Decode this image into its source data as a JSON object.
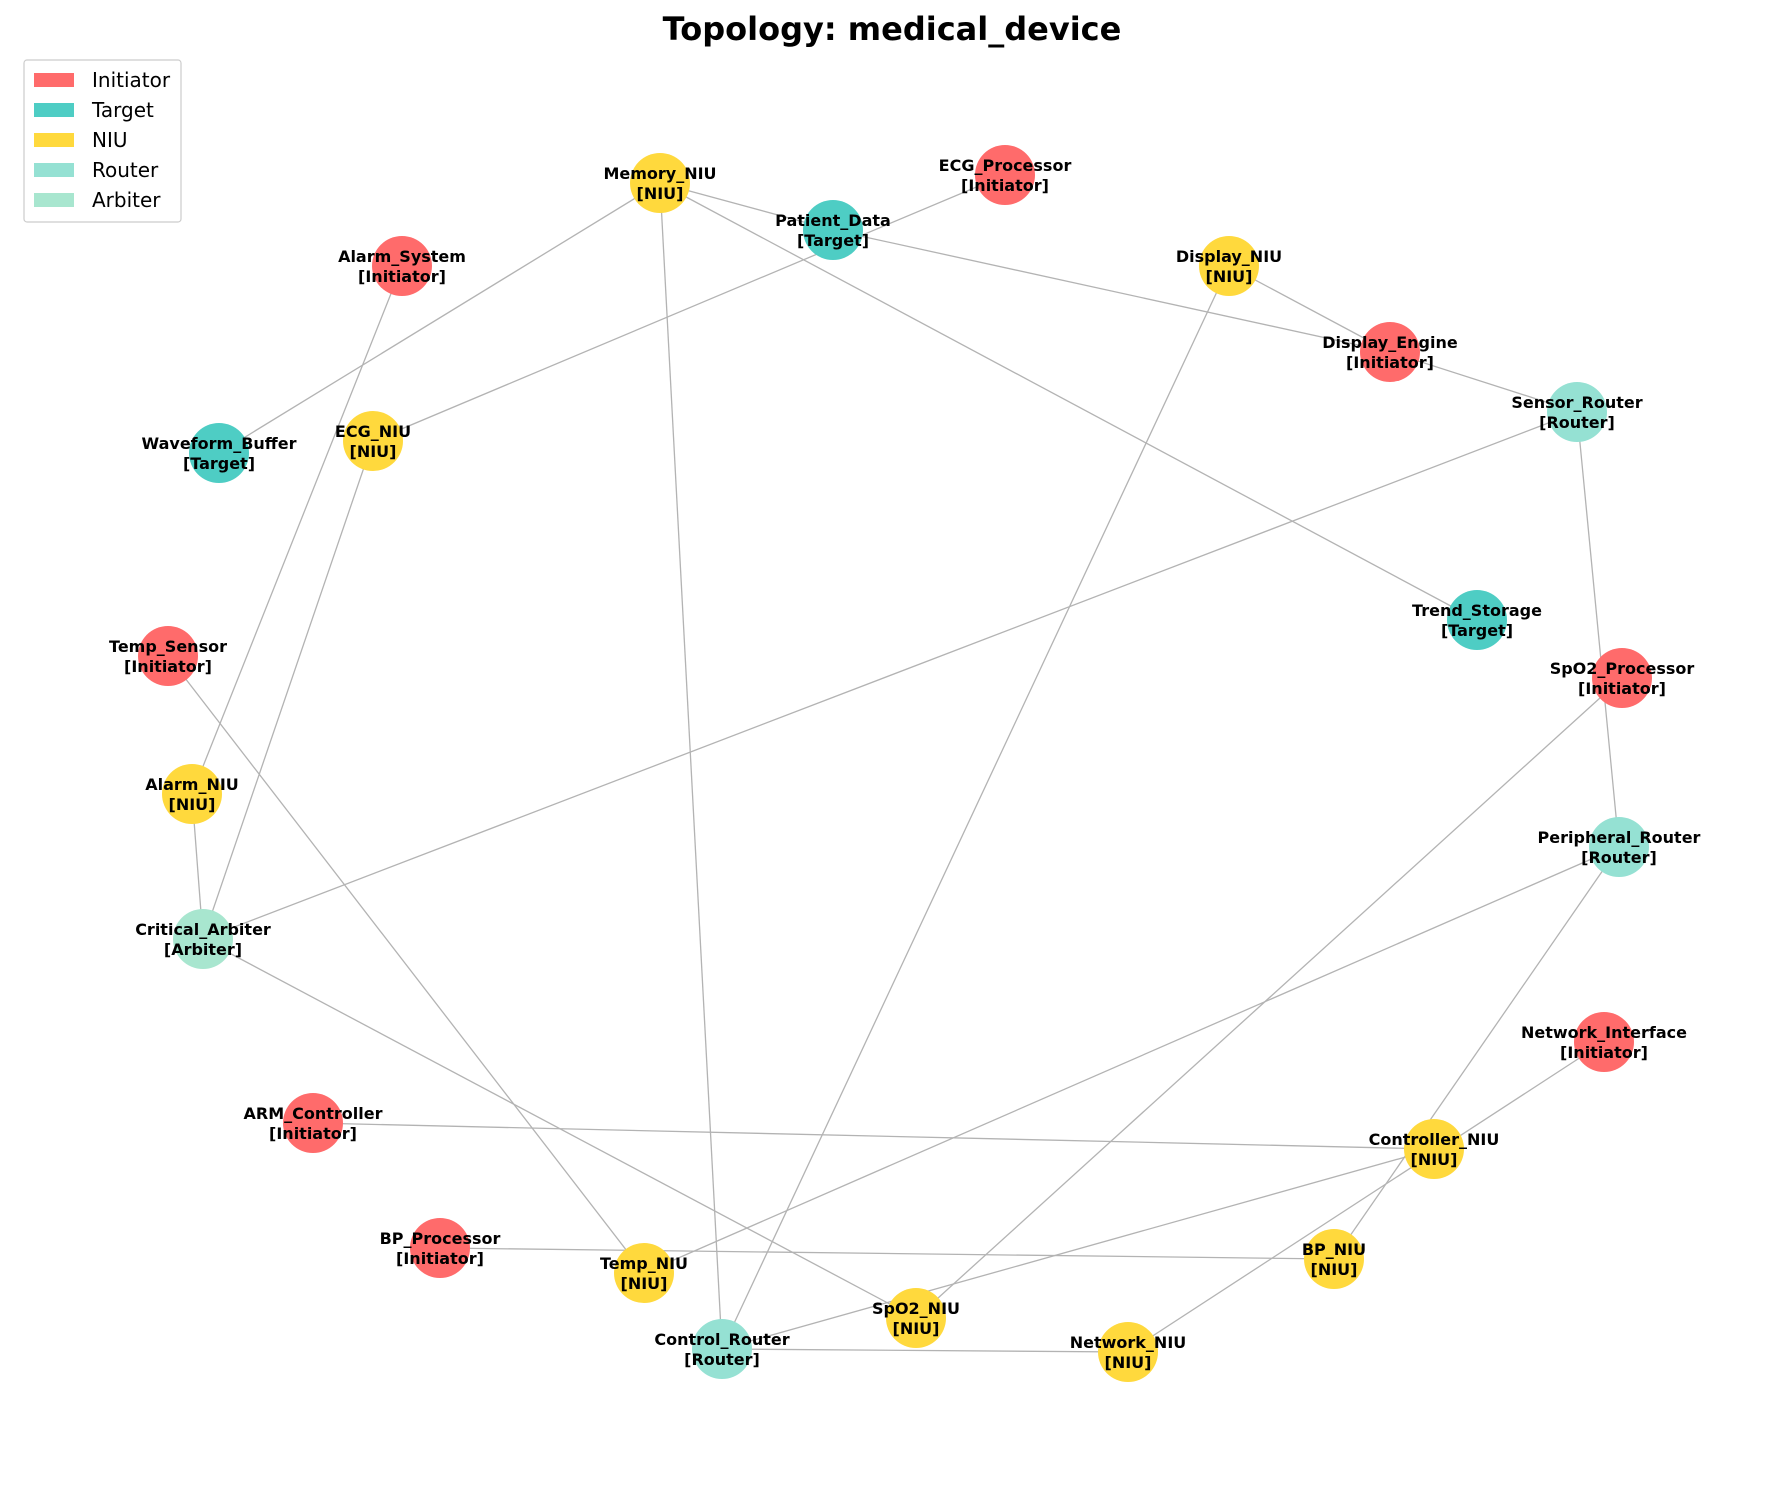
{
  "title": "Topology: medical_device",
  "legend": [
    {
      "key": "Initiator",
      "label": "Initiator",
      "color": "#ff6b6b"
    },
    {
      "key": "Target",
      "label": "Target",
      "color": "#4ecdc4"
    },
    {
      "key": "NIU",
      "label": "NIU",
      "color": "#ffd93d"
    },
    {
      "key": "Router",
      "label": "Router",
      "color": "#95e1d3"
    },
    {
      "key": "Arbiter",
      "label": "Arbiter",
      "color": "#a8e6cf"
    }
  ],
  "nodes": [
    {
      "id": "Memory_NIU",
      "type": "NIU",
      "label": "[NIU]"
    },
    {
      "id": "Patient_Data",
      "type": "Target",
      "label": "[Target]"
    },
    {
      "id": "ECG_Processor",
      "type": "Initiator",
      "label": "[Initiator]"
    },
    {
      "id": "Alarm_System",
      "type": "Initiator",
      "label": "[Initiator]"
    },
    {
      "id": "Display_NIU",
      "type": "NIU",
      "label": "[NIU]"
    },
    {
      "id": "Display_Engine",
      "type": "Initiator",
      "label": "[Initiator]"
    },
    {
      "id": "Sensor_Router",
      "type": "Router",
      "label": "[Router]"
    },
    {
      "id": "Waveform_Buffer",
      "type": "Target",
      "label": "[Target]"
    },
    {
      "id": "ECG_NIU",
      "type": "NIU",
      "label": "[NIU]"
    },
    {
      "id": "Trend_Storage",
      "type": "Target",
      "label": "[Target]"
    },
    {
      "id": "Temp_Sensor",
      "type": "Initiator",
      "label": "[Initiator]"
    },
    {
      "id": "SpO2_Processor",
      "type": "Initiator",
      "label": "[Initiator]"
    },
    {
      "id": "Alarm_NIU",
      "type": "NIU",
      "label": "[NIU]"
    },
    {
      "id": "Peripheral_Router",
      "type": "Router",
      "label": "[Router]"
    },
    {
      "id": "Critical_Arbiter",
      "type": "Arbiter",
      "label": "[Arbiter]"
    },
    {
      "id": "Network_Interface",
      "type": "Initiator",
      "label": "[Initiator]"
    },
    {
      "id": "ARM_Controller",
      "type": "Initiator",
      "label": "[Initiator]"
    },
    {
      "id": "Controller_NIU",
      "type": "NIU",
      "label": "[NIU]"
    },
    {
      "id": "BP_Processor",
      "type": "Initiator",
      "label": "[Initiator]"
    },
    {
      "id": "BP_NIU",
      "type": "NIU",
      "label": "[NIU]"
    },
    {
      "id": "Temp_NIU",
      "type": "NIU",
      "label": "[NIU]"
    },
    {
      "id": "SpO2_NIU",
      "type": "NIU",
      "label": "[NIU]"
    },
    {
      "id": "Control_Router",
      "type": "Router",
      "label": "[Router]"
    },
    {
      "id": "Network_NIU",
      "type": "NIU",
      "label": "[NIU]"
    }
  ],
  "edges": [
    [
      "Memory_NIU",
      "Patient_Data"
    ],
    [
      "Memory_NIU",
      "Waveform_Buffer"
    ],
    [
      "Memory_NIU",
      "Trend_Storage"
    ],
    [
      "Memory_NIU",
      "Control_Router"
    ],
    [
      "Patient_Data",
      "Display_Engine"
    ],
    [
      "ECG_Processor",
      "ECG_NIU"
    ],
    [
      "Alarm_System",
      "Alarm_NIU"
    ],
    [
      "Display_NIU",
      "Display_Engine"
    ],
    [
      "Display_NIU",
      "Control_Router"
    ],
    [
      "Display_Engine",
      "Sensor_Router"
    ],
    [
      "Sensor_Router",
      "Peripheral_Router"
    ],
    [
      "Sensor_Router",
      "Critical_Arbiter"
    ],
    [
      "ECG_NIU",
      "Critical_Arbiter"
    ],
    [
      "Temp_Sensor",
      "Temp_NIU"
    ],
    [
      "SpO2_Processor",
      "SpO2_NIU"
    ],
    [
      "Alarm_NIU",
      "Critical_Arbiter"
    ],
    [
      "Critical_Arbiter",
      "SpO2_NIU"
    ],
    [
      "Peripheral_Router",
      "Temp_NIU"
    ],
    [
      "Peripheral_Router",
      "BP_NIU"
    ],
    [
      "Network_Interface",
      "Network_NIU"
    ],
    [
      "ARM_Controller",
      "Controller_NIU"
    ],
    [
      "Controller_NIU",
      "Control_Router"
    ],
    [
      "BP_Processor",
      "BP_NIU"
    ],
    [
      "Control_Router",
      "Network_NIU"
    ]
  ]
}
